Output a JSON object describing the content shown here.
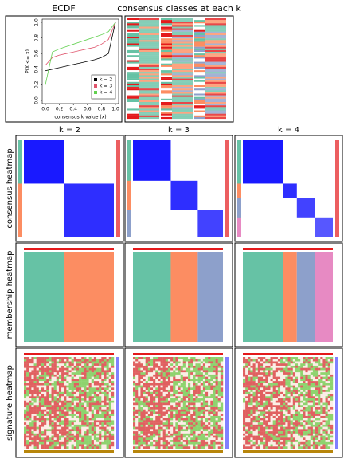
{
  "chart_data": {
    "type": "line",
    "title": "ECDF",
    "x_label": "consensus k value (x)",
    "y_label": "P(X <= x)",
    "x": [
      0,
      0.1,
      0.2,
      0.3,
      0.4,
      0.5,
      0.6,
      0.7,
      0.8,
      0.9,
      1.0
    ],
    "series": [
      {
        "name": "k = 2",
        "color": "#000000",
        "values": [
          0.38,
          0.4,
          0.42,
          0.44,
          0.46,
          0.48,
          0.5,
          0.52,
          0.55,
          0.6,
          1.0
        ]
      },
      {
        "name": "k = 3",
        "color": "#df536b",
        "values": [
          0.45,
          0.55,
          0.58,
          0.6,
          0.62,
          0.64,
          0.66,
          0.68,
          0.72,
          0.78,
          1.0
        ]
      },
      {
        "name": "k = 4",
        "color": "#61d04f",
        "values": [
          0.2,
          0.62,
          0.66,
          0.69,
          0.72,
          0.75,
          0.78,
          0.81,
          0.84,
          0.88,
          1.0
        ]
      }
    ],
    "xlim": [
      0,
      1
    ],
    "ylim": [
      0,
      1
    ],
    "xticks": [
      {
        "value": 0,
        "label": "0.0"
      },
      0.2,
      0.4,
      0.6,
      0.8,
      {
        "value": 1,
        "label": "1.0"
      }
    ],
    "yticks": [
      {
        "value": 0,
        "label": "0.0"
      },
      0.2,
      0.4,
      0.6,
      0.8,
      {
        "value": 1,
        "label": "1.0"
      }
    ],
    "legend": "bottom-right"
  },
  "layout": {
    "classes_title": "consensus classes at each k",
    "columns": [
      "k = 2",
      "k = 3",
      "k = 4"
    ],
    "rows": [
      "consensus heatmap",
      "membership heatmap",
      "signature heatmap"
    ]
  }
}
